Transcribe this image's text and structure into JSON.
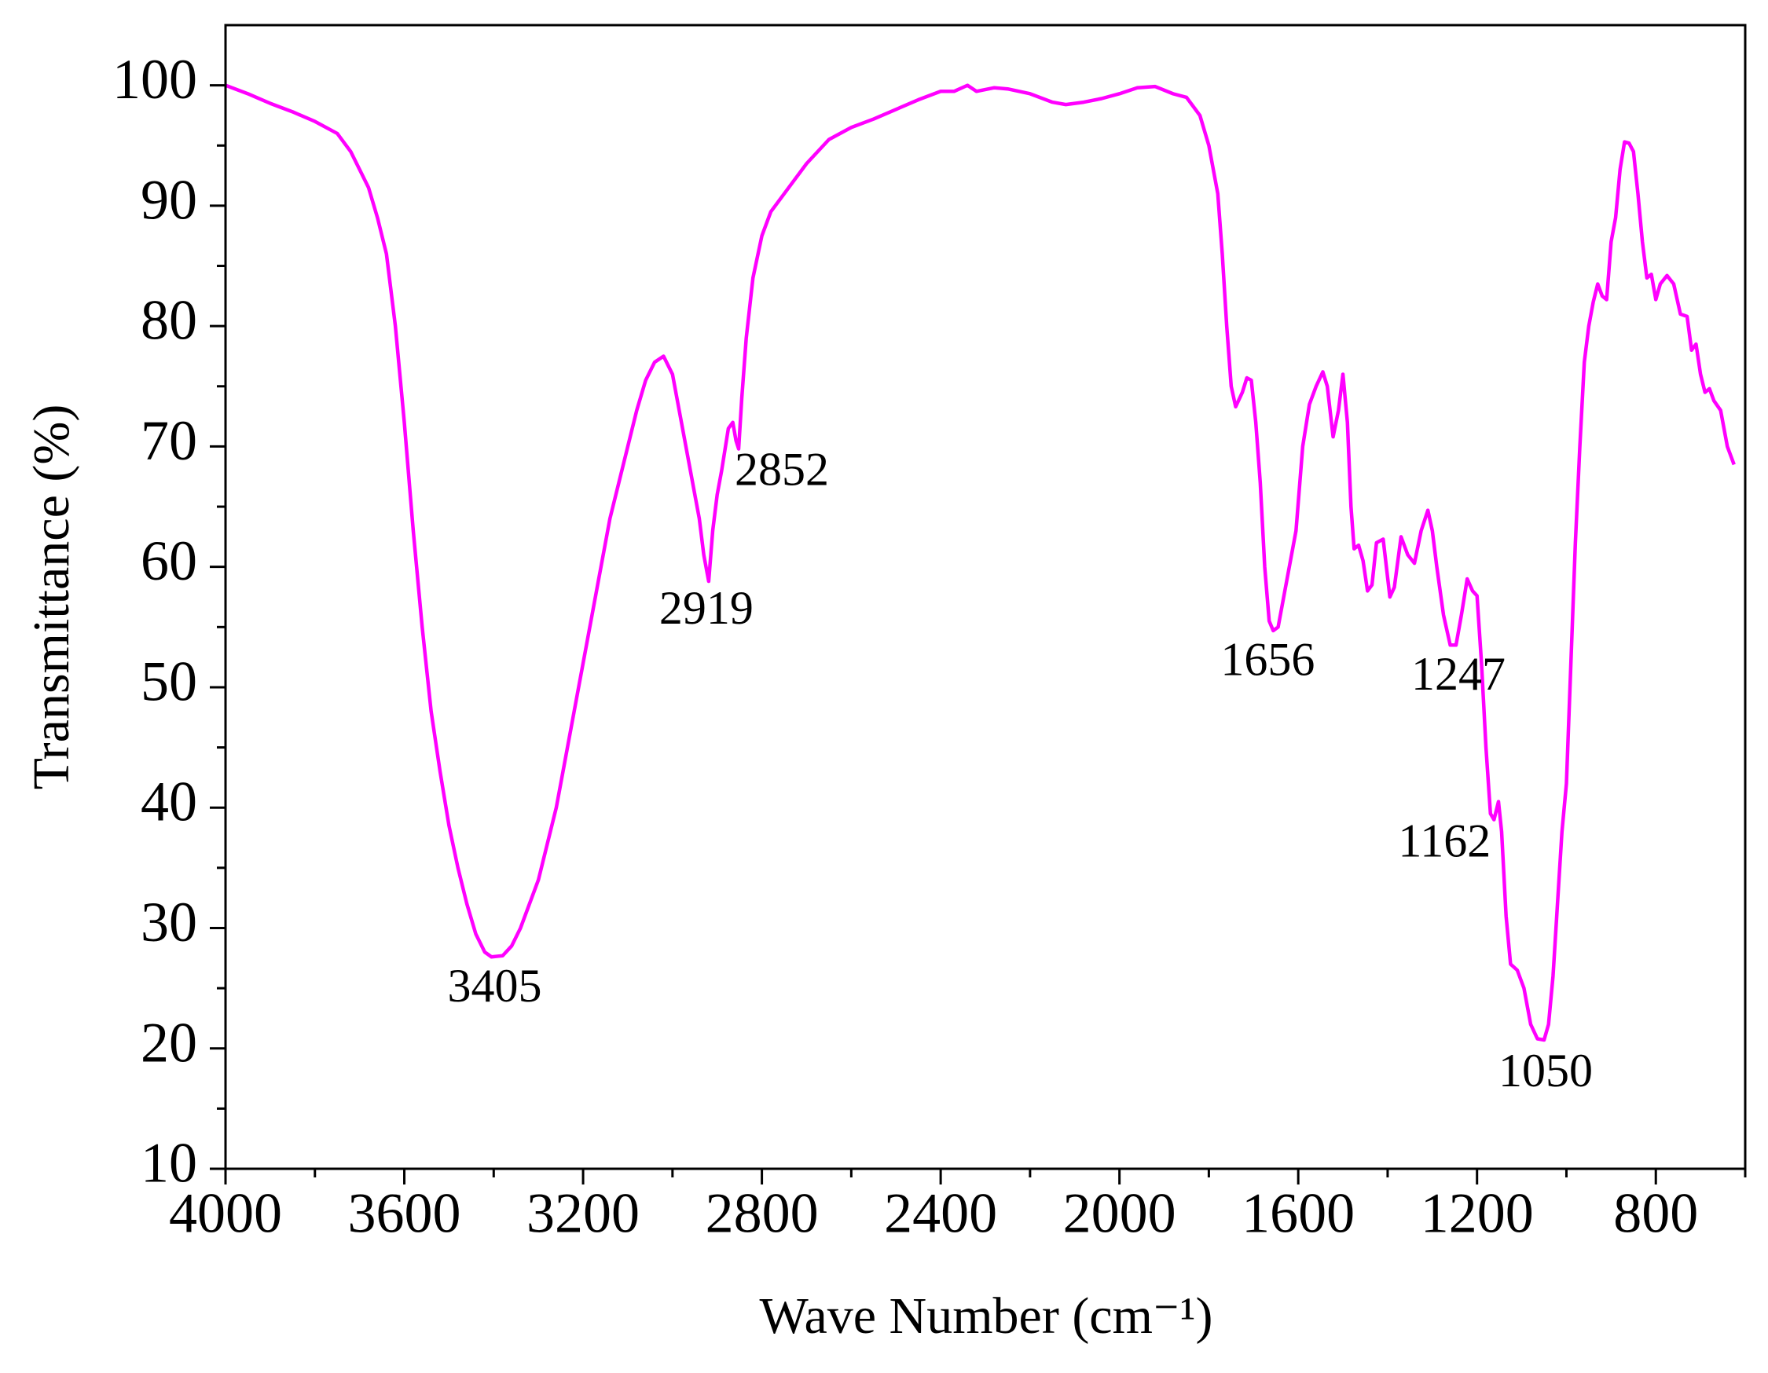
{
  "chart_data": {
    "type": "line",
    "x_label": "Wave Number (cm⁻¹)",
    "y_label": "Transmittance (%)",
    "xlim": [
      4000,
      600
    ],
    "ylim": [
      10,
      105
    ],
    "xticks": [
      4000,
      3600,
      3200,
      2800,
      2400,
      2000,
      1600,
      1200,
      800
    ],
    "yticks": [
      10,
      20,
      30,
      40,
      50,
      60,
      70,
      80,
      90,
      100
    ],
    "xminorticks": [
      3800,
      3400,
      3000,
      2600,
      2200,
      1800,
      1400,
      1000,
      600
    ],
    "yminorticks": [
      15,
      25,
      35,
      45,
      55,
      65,
      75,
      85,
      95
    ],
    "grid": false,
    "series": [
      {
        "color": "#ff00ff",
        "x": [
          4000,
          3950,
          3900,
          3850,
          3800,
          3750,
          3720,
          3700,
          3680,
          3660,
          3640,
          3620,
          3600,
          3580,
          3560,
          3540,
          3520,
          3500,
          3480,
          3460,
          3440,
          3420,
          3405,
          3380,
          3360,
          3340,
          3320,
          3300,
          3280,
          3260,
          3240,
          3220,
          3200,
          3180,
          3160,
          3140,
          3120,
          3100,
          3080,
          3060,
          3040,
          3020,
          3000,
          2980,
          2960,
          2940,
          2930,
          2919,
          2910,
          2900,
          2890,
          2875,
          2865,
          2858,
          2852,
          2845,
          2835,
          2820,
          2800,
          2780,
          2750,
          2700,
          2650,
          2600,
          2550,
          2500,
          2450,
          2400,
          2370,
          2340,
          2320,
          2280,
          2250,
          2200,
          2150,
          2120,
          2080,
          2040,
          2000,
          1960,
          1920,
          1880,
          1850,
          1820,
          1800,
          1780,
          1770,
          1760,
          1750,
          1740,
          1725,
          1715,
          1705,
          1695,
          1685,
          1675,
          1665,
          1656,
          1645,
          1635,
          1620,
          1605,
          1590,
          1575,
          1560,
          1545,
          1535,
          1522,
          1510,
          1500,
          1490,
          1482,
          1475,
          1465,
          1455,
          1445,
          1435,
          1425,
          1410,
          1395,
          1385,
          1370,
          1355,
          1340,
          1325,
          1310,
          1300,
          1290,
          1275,
          1260,
          1247,
          1235,
          1222,
          1210,
          1200,
          1190,
          1180,
          1170,
          1162,
          1152,
          1145,
          1135,
          1125,
          1110,
          1095,
          1080,
          1065,
          1050,
          1040,
          1030,
          1020,
          1010,
          1000,
          990,
          980,
          970,
          960,
          950,
          940,
          930,
          920,
          910,
          900,
          890,
          880,
          870,
          860,
          850,
          840,
          830,
          820,
          810,
          800,
          790,
          775,
          760,
          745,
          730,
          720,
          710,
          700,
          690,
          680,
          670,
          655,
          640,
          625
        ],
        "values": [
          100,
          99.3,
          98.5,
          97.8,
          97,
          96,
          94.5,
          93,
          91.5,
          89,
          86,
          80,
          72,
          63,
          55,
          48,
          43,
          38.5,
          35,
          32,
          29.5,
          28,
          27.6,
          27.7,
          28.5,
          30,
          32,
          34,
          37,
          40,
          44,
          48,
          52,
          56,
          60,
          64,
          67,
          70,
          73,
          75.5,
          77,
          77.5,
          76,
          72,
          68,
          64,
          61,
          58.8,
          63,
          66,
          68,
          71.5,
          72,
          70.5,
          69.8,
          74,
          79,
          84,
          87.5,
          89.5,
          91,
          93.5,
          95.5,
          96.5,
          97.2,
          98,
          98.8,
          99.5,
          99.5,
          100,
          99.5,
          99.8,
          99.7,
          99.3,
          98.6,
          98.4,
          98.6,
          98.9,
          99.3,
          99.8,
          99.9,
          99.3,
          99,
          97.5,
          95,
          91,
          86,
          80,
          75,
          73.3,
          74.5,
          75.7,
          75.5,
          72,
          67,
          60,
          55.5,
          54.7,
          55,
          57,
          60,
          63,
          70,
          73.5,
          75,
          76.2,
          75,
          70.8,
          73,
          76,
          72,
          65,
          61.5,
          61.8,
          60.5,
          58,
          58.5,
          62,
          62.3,
          57.5,
          58.3,
          62.5,
          61,
          60.3,
          63,
          64.7,
          63,
          60,
          56,
          53.5,
          53.5,
          56,
          59,
          58,
          57.6,
          52,
          45,
          39.5,
          39,
          40.5,
          38,
          31,
          27,
          26.5,
          25,
          22,
          20.8,
          20.7,
          22,
          26,
          32,
          38,
          42,
          52,
          62,
          70,
          77,
          80,
          82,
          83.5,
          82.5,
          82.2,
          87,
          89,
          93,
          95.3,
          95.2,
          94.5,
          91,
          87,
          84,
          84.3,
          82.2,
          83.5,
          84.2,
          83.5,
          81,
          80.8,
          78,
          78.5,
          76,
          74.5,
          74.8,
          73.8,
          73,
          70,
          68.5
        ]
      }
    ],
    "annotations": [
      {
        "text": "3405",
        "x": 3405,
        "y": 27.6
      },
      {
        "text": "2919",
        "x": 2919,
        "y": 58.8
      },
      {
        "text": "2852",
        "x": 2852,
        "y": 69.8
      },
      {
        "text": "1656",
        "x": 1656,
        "y": 54.7
      },
      {
        "text": "1247",
        "x": 1247,
        "y": 53.5
      },
      {
        "text": "1162",
        "x": 1162,
        "y": 39
      },
      {
        "text": "1050",
        "x": 1050,
        "y": 20.7
      }
    ]
  }
}
